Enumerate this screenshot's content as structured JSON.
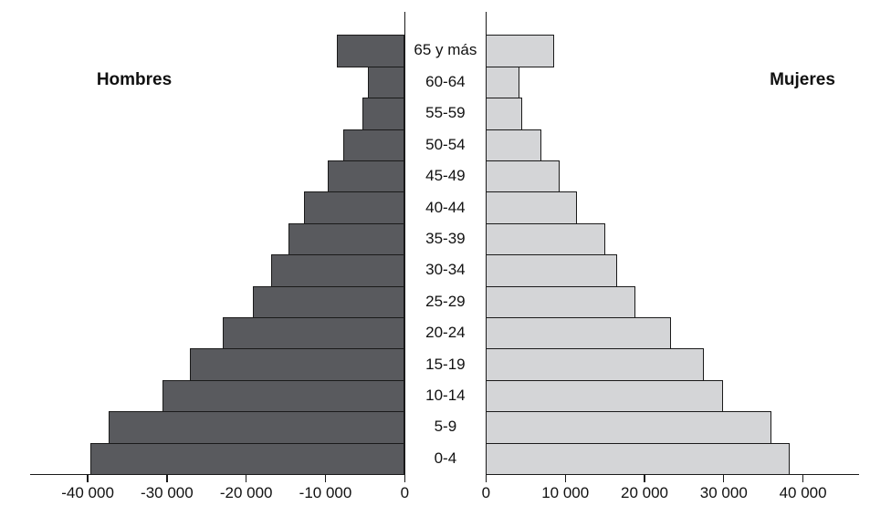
{
  "chart_data": {
    "type": "bar",
    "subtype": "population-pyramid",
    "orientation": "horizontal",
    "categories": [
      "65 y más",
      "60-64",
      "55-59",
      "50-54",
      "45-49",
      "40-44",
      "35-39",
      "30-34",
      "25-29",
      "20-24",
      "15-19",
      "10-14",
      "5-9",
      "0-4"
    ],
    "series": [
      {
        "name": "Hombres",
        "side": "left",
        "values": [
          8600,
          4600,
          5300,
          7800,
          9700,
          12700,
          14700,
          16900,
          19200,
          23000,
          27100,
          30600,
          37400,
          39700
        ]
      },
      {
        "name": "Mujeres",
        "side": "right",
        "values": [
          8600,
          4200,
          4600,
          7000,
          9300,
          11500,
          15100,
          16500,
          18900,
          23300,
          27500,
          29900,
          36000,
          38300
        ]
      }
    ],
    "title": "",
    "xlabel": "",
    "ylabel": "",
    "x_axis": {
      "left_tick_values": [
        -40000,
        -30000,
        -20000,
        -10000,
        0
      ],
      "left_tick_labels": [
        "-40 000",
        "-30 000",
        "-20 000",
        "-10 000",
        "0"
      ],
      "right_tick_values": [
        0,
        10000,
        20000,
        30000,
        40000
      ],
      "right_tick_labels": [
        "0",
        "10 000",
        "20 000",
        "30 000",
        "40 000"
      ],
      "xlim_left": [
        -47000,
        0
      ],
      "xlim_right": [
        0,
        47000
      ]
    },
    "grid": false,
    "legend_position": "none"
  },
  "colors": {
    "hombres_fill": "#595a5e",
    "mujeres_fill": "#d4d5d7",
    "line": "#1a1a1a",
    "text": "#111111"
  }
}
